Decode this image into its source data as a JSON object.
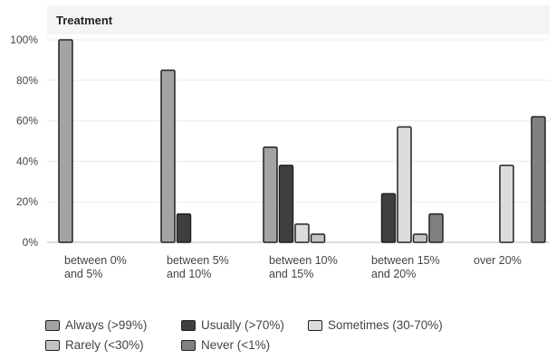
{
  "chart_data": {
    "type": "bar",
    "title": "Treatment",
    "categories": [
      [
        "between 0%",
        "and 5%"
      ],
      [
        "between 5%",
        "and 10%"
      ],
      [
        "between 10%",
        "and 15%"
      ],
      [
        "between 15%",
        "and 20%"
      ],
      [
        "over 20%"
      ]
    ],
    "series": [
      {
        "name": "Always (>99%)",
        "color": "#a3a3a3",
        "values": [
          100,
          85,
          47,
          0,
          0
        ]
      },
      {
        "name": "Usually (>70%)",
        "color": "#3f3f3f",
        "values": [
          0,
          14,
          38,
          24,
          0
        ]
      },
      {
        "name": "Sometimes (30-70%)",
        "color": "#dcdcdc",
        "values": [
          0,
          0,
          9,
          57,
          38
        ]
      },
      {
        "name": "Rarely (<30%)",
        "color": "#c4c4c4",
        "values": [
          0,
          0,
          4,
          4,
          0
        ]
      },
      {
        "name": "Never (<1%)",
        "color": "#808080",
        "values": [
          0,
          0,
          0,
          14,
          62
        ]
      }
    ],
    "ylim": [
      0,
      100
    ],
    "yticks": [
      "0%",
      "20%",
      "40%",
      "60%",
      "80%",
      "100%"
    ],
    "ytick_values": [
      0,
      20,
      40,
      60,
      80,
      100
    ],
    "grid": true,
    "legend_position": "bottom"
  }
}
